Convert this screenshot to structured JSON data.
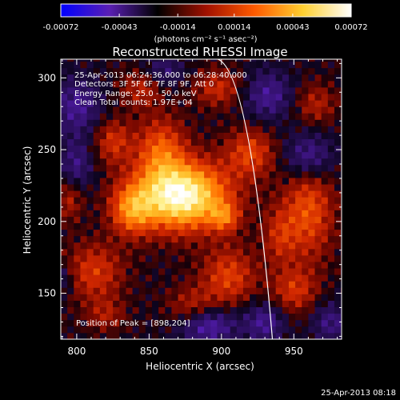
{
  "chart_data": {
    "type": "heatmap",
    "title": "Reconstructed RHESSI Image",
    "xlabel": "Heliocentric X (arcsec)",
    "ylabel": "Heliocentric Y (arcsec)",
    "xlim": [
      789,
      983
    ],
    "ylim": [
      118,
      313
    ],
    "x_ticks": [
      800,
      850,
      900,
      950
    ],
    "y_ticks": [
      150,
      200,
      250,
      300
    ],
    "colorbar": {
      "ticks": [
        "-0.00072",
        "-0.00043",
        "-0.00014",
        "0.00014",
        "0.00043",
        "0.00072"
      ],
      "min": -0.00072,
      "max": 0.00072,
      "unit_label": "(photons cm⁻² s⁻¹ asec⁻²)",
      "colors": [
        "#0000ff",
        "#5a1fb4",
        "#000000",
        "#a01000",
        "#ff5a00",
        "#ffd030",
        "#ffffff"
      ]
    },
    "annotations": [
      "25-Apr-2013 06:24:36.000 to 06:28:40.000",
      "Detectors: 3F 5F 6F 7F 8F 9F, Att 0",
      "Energy Range: 25.0 - 50.0 keV",
      "Clean     Total counts: 1.97E+04"
    ],
    "peak_label": "Position of Peak = [898,204]",
    "peak": [
      898,
      204
    ],
    "sources": [
      {
        "x": 872,
        "y": 218,
        "sx": 22,
        "sy": 16,
        "a": 1.0
      },
      {
        "x": 902,
        "y": 203,
        "sx": 7,
        "sy": 7,
        "a": 0.35
      },
      {
        "x": 838,
        "y": 208,
        "sx": 10,
        "sy": 12,
        "a": 0.45
      },
      {
        "x": 858,
        "y": 250,
        "sx": 12,
        "sy": 16,
        "a": 0.4
      },
      {
        "x": 825,
        "y": 256,
        "sx": 9,
        "sy": 11,
        "a": 0.3
      },
      {
        "x": 920,
        "y": 248,
        "sx": 12,
        "sy": 12,
        "a": 0.35
      },
      {
        "x": 960,
        "y": 208,
        "sx": 12,
        "sy": 24,
        "a": 0.4
      },
      {
        "x": 905,
        "y": 162,
        "sx": 13,
        "sy": 14,
        "a": 0.35
      },
      {
        "x": 812,
        "y": 165,
        "sx": 14,
        "sy": 14,
        "a": 0.32
      },
      {
        "x": 950,
        "y": 152,
        "sx": 11,
        "sy": 11,
        "a": 0.3
      },
      {
        "x": 845,
        "y": 293,
        "sx": 10,
        "sy": 9,
        "a": 0.25
      },
      {
        "x": 898,
        "y": 293,
        "sx": 12,
        "sy": 9,
        "a": 0.28
      },
      {
        "x": 880,
        "y": 140,
        "sx": 12,
        "sy": 10,
        "a": 0.25
      },
      {
        "x": 965,
        "y": 282,
        "sx": 10,
        "sy": 10,
        "a": 0.22
      },
      {
        "x": 820,
        "y": 135,
        "sx": 9,
        "sy": 8,
        "a": 0.2
      },
      {
        "x": 940,
        "y": 190,
        "sx": 8,
        "sy": 14,
        "a": 0.25
      },
      {
        "x": 795,
        "y": 215,
        "sx": 6,
        "sy": 10,
        "a": 0.22
      }
    ],
    "negatives": [
      {
        "x": 960,
        "y": 245,
        "sx": 12,
        "sy": 12,
        "a": 0.35
      },
      {
        "x": 932,
        "y": 288,
        "sx": 12,
        "sy": 12,
        "a": 0.3
      },
      {
        "x": 800,
        "y": 280,
        "sx": 12,
        "sy": 14,
        "a": 0.3
      },
      {
        "x": 800,
        "y": 240,
        "sx": 8,
        "sy": 12,
        "a": 0.25
      },
      {
        "x": 890,
        "y": 128,
        "sx": 14,
        "sy": 9,
        "a": 0.4
      },
      {
        "x": 930,
        "y": 130,
        "sx": 10,
        "sy": 10,
        "a": 0.3
      },
      {
        "x": 860,
        "y": 305,
        "sx": 10,
        "sy": 8,
        "a": 0.22
      },
      {
        "x": 975,
        "y": 130,
        "sx": 9,
        "sy": 10,
        "a": 0.25
      },
      {
        "x": 790,
        "y": 160,
        "sx": 6,
        "sy": 8,
        "a": 0.2
      }
    ],
    "limb_arc": [
      [
        935.2,
        118
      ],
      [
        918,
        260
      ],
      [
        897.5,
        313
      ]
    ]
  },
  "footer_timestamp": "25-Apr-2013 08:18"
}
